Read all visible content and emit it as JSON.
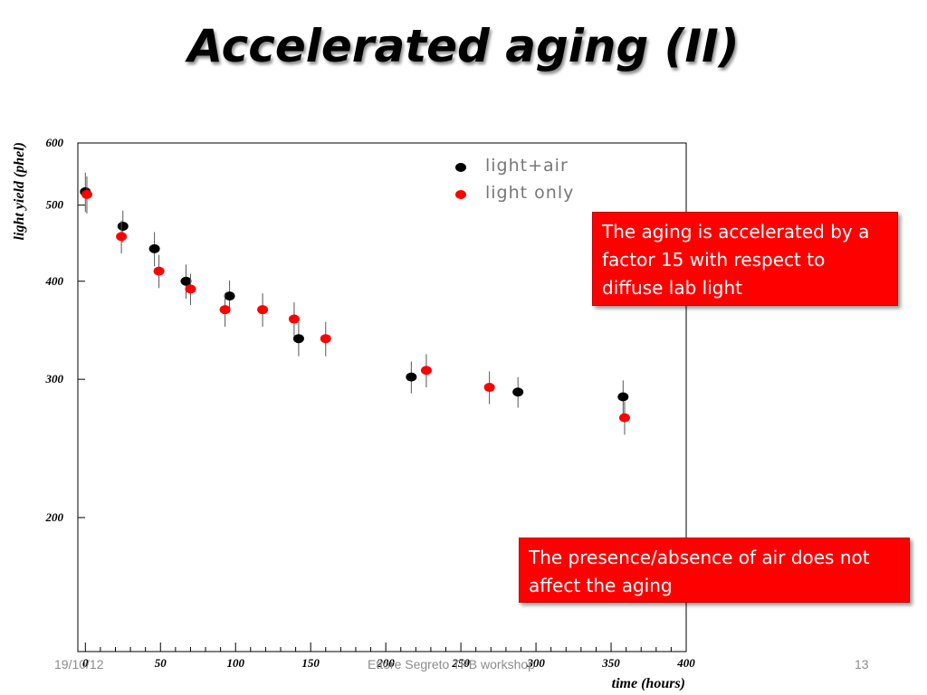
{
  "slide": {
    "title": "Accelerated aging (II)",
    "callout_aging": "The aging is accelerated by a factor 15 with respect to diffuse lab light",
    "callout_air": "The presence/absence of air does not affect the aging",
    "footer_date": "19/10/12",
    "footer_author": "Ettore Segreto TPB workshop",
    "page_number": "13"
  },
  "chart_data": {
    "type": "scatter",
    "xlabel": "time (hours)",
    "ylabel": "light yield (phel)",
    "xlim": [
      -5,
      400
    ],
    "ylim": [
      135,
      600
    ],
    "yscale": "log",
    "xticks": [
      0,
      50,
      100,
      150,
      200,
      250,
      300,
      350,
      400
    ],
    "yticks": [
      200,
      300,
      400,
      500,
      600
    ],
    "legend_position": "top-right",
    "series": [
      {
        "name": "light+air",
        "color": "#000000",
        "points": [
          {
            "x": 0,
            "y": 520,
            "err": 30
          },
          {
            "x": 25,
            "y": 470,
            "err": 22
          },
          {
            "x": 46,
            "y": 440,
            "err": 22
          },
          {
            "x": 67,
            "y": 400,
            "err": 20
          },
          {
            "x": 96,
            "y": 383,
            "err": 18
          },
          {
            "x": 142,
            "y": 338,
            "err": 17
          },
          {
            "x": 217,
            "y": 302,
            "err": 14
          },
          {
            "x": 288,
            "y": 289,
            "err": 13
          },
          {
            "x": 358,
            "y": 285,
            "err": 14
          }
        ]
      },
      {
        "name": "light only",
        "color": "#ff0000",
        "points": [
          {
            "x": 1,
            "y": 516,
            "err": 28
          },
          {
            "x": 24,
            "y": 456,
            "err": 22
          },
          {
            "x": 49,
            "y": 412,
            "err": 20
          },
          {
            "x": 70,
            "y": 391,
            "err": 18
          },
          {
            "x": 93,
            "y": 368,
            "err": 18
          },
          {
            "x": 118,
            "y": 368,
            "err": 18
          },
          {
            "x": 139,
            "y": 358,
            "err": 18
          },
          {
            "x": 160,
            "y": 338,
            "err": 17
          },
          {
            "x": 227,
            "y": 308,
            "err": 15
          },
          {
            "x": 269,
            "y": 293,
            "err": 14
          },
          {
            "x": 359,
            "y": 268,
            "err": 13
          }
        ]
      }
    ]
  }
}
